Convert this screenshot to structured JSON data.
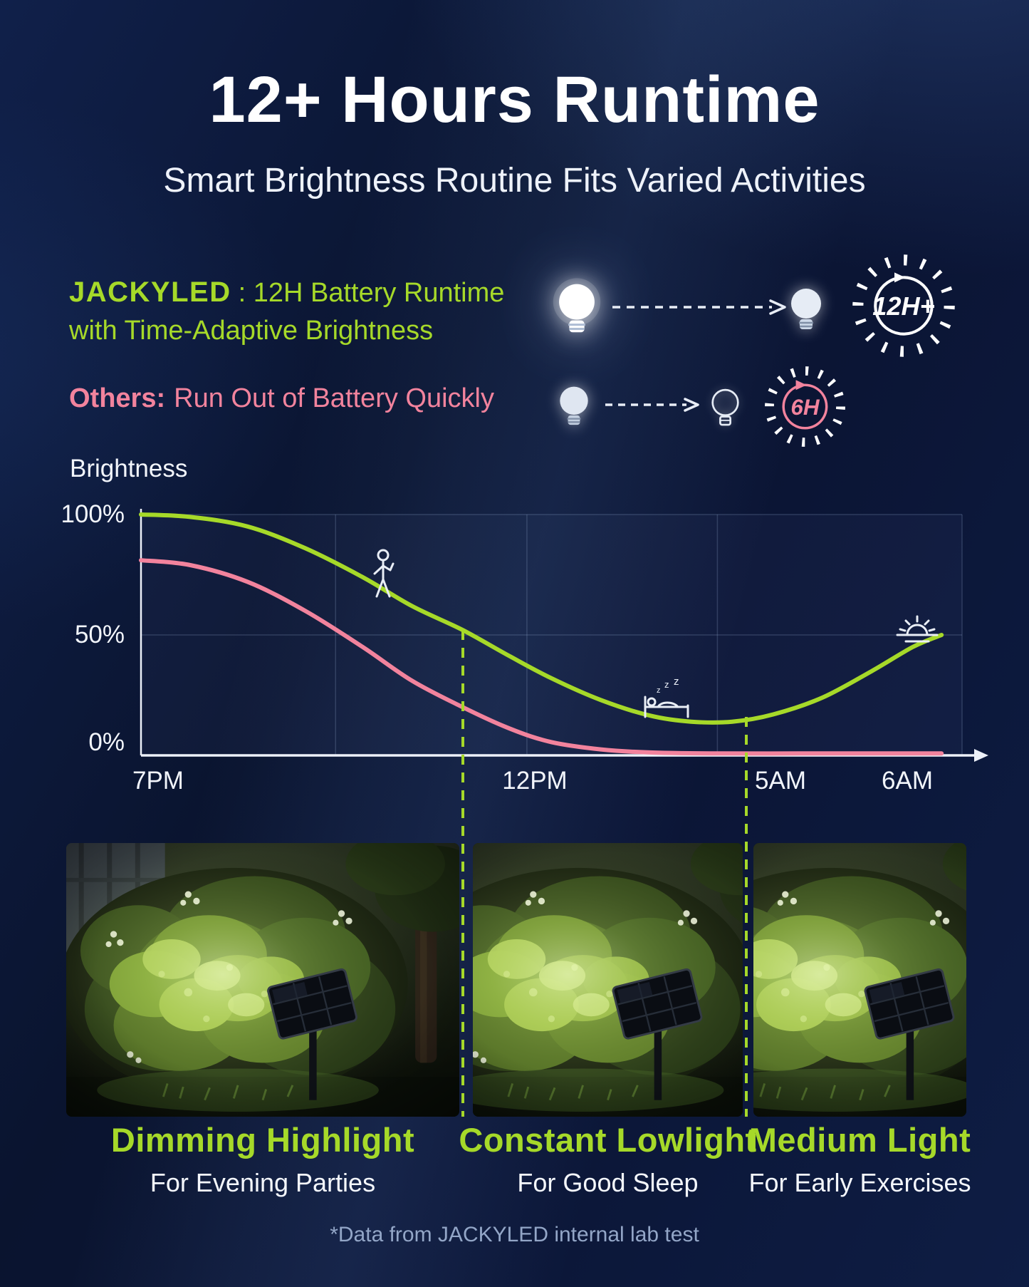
{
  "page": {
    "title": "12+ Hours Runtime",
    "subtitle": "Smart Brightness Routine Fits Varied Activities",
    "footnote": "*Data from JACKYLED internal lab test"
  },
  "colors": {
    "accent_green": "#a6d929",
    "accent_pink": "#f2839d",
    "background_navy": "#0b1533",
    "text_white": "#ffffff"
  },
  "comparison": {
    "jackyled": {
      "brand": "JACKYLED",
      "rest": ": 12H Battery Runtime",
      "line2": "with Time-Adaptive Brightness",
      "badge": "12H+",
      "icons": [
        "bulb-bright-icon",
        "dashed-arrow-icon",
        "bulb-dim-icon",
        "clock-ring-12h-badge"
      ]
    },
    "others": {
      "brand": "Others:",
      "rest": "Run Out of Battery Quickly",
      "badge": "6H",
      "icons": [
        "bulb-dim-icon",
        "dashed-arrow-icon",
        "bulb-outline-icon",
        "clock-ring-6h-badge"
      ]
    }
  },
  "chart_data": {
    "type": "line",
    "title": "Brightness",
    "ylabel": "Brightness",
    "ylim": [
      0,
      100
    ],
    "x_axis_note": "time from 7PM to 6AM, axis not to scale",
    "x_ticks": [
      {
        "label": "7PM",
        "t": 0.02
      },
      {
        "label": "12PM",
        "t": 0.48
      },
      {
        "label": "5AM",
        "t": 0.779
      },
      {
        "label": "6AM",
        "t": 0.933
      }
    ],
    "y_ticks": [
      {
        "label": "100%",
        "value": 100
      },
      {
        "label": "50%",
        "value": 50
      },
      {
        "label": "0%",
        "value": 0
      }
    ],
    "grid": {
      "vertical_t": [
        0.237,
        0.47,
        0.702,
        1.0
      ],
      "horizontal_values": [
        100,
        50
      ]
    },
    "series": [
      {
        "name": "JACKYLED",
        "color": "#a6d929",
        "points": [
          [
            0,
            100
          ],
          [
            0.06,
            99
          ],
          [
            0.13,
            95
          ],
          [
            0.2,
            86
          ],
          [
            0.27,
            74
          ],
          [
            0.33,
            62
          ],
          [
            0.392,
            52
          ],
          [
            0.45,
            41
          ],
          [
            0.5,
            32
          ],
          [
            0.56,
            23
          ],
          [
            0.62,
            16.5
          ],
          [
            0.67,
            14
          ],
          [
            0.72,
            14
          ],
          [
            0.77,
            17
          ],
          [
            0.83,
            24
          ],
          [
            0.89,
            35
          ],
          [
            0.94,
            45
          ],
          [
            0.975,
            50
          ]
        ]
      },
      {
        "name": "Others",
        "color": "#f2839d",
        "points": [
          [
            0,
            81
          ],
          [
            0.06,
            79
          ],
          [
            0.13,
            72
          ],
          [
            0.2,
            60
          ],
          [
            0.27,
            45
          ],
          [
            0.33,
            31
          ],
          [
            0.392,
            20
          ],
          [
            0.45,
            11
          ],
          [
            0.5,
            5.5
          ],
          [
            0.56,
            2.5
          ],
          [
            0.62,
            1.2
          ],
          [
            0.7,
            0.8
          ],
          [
            0.8,
            0.8
          ],
          [
            0.9,
            0.8
          ],
          [
            0.975,
            0.8
          ]
        ]
      }
    ],
    "annotations": [
      {
        "icon": "walking-person-icon",
        "t": 0.295,
        "value": 86
      },
      {
        "icon": "sleeping-bed-icon",
        "t": 0.64,
        "value": 33
      },
      {
        "icon": "sunrise-icon",
        "t": 0.945,
        "value": 60
      }
    ],
    "markers": [
      {
        "t": 0.392,
        "start_value": 52
      },
      {
        "t": 0.737,
        "start_value": 16
      }
    ]
  },
  "photos": [
    {
      "title": "Dimming Highlight",
      "subtitle": "For Evening Parties",
      "illustration": "garden-solar-light-photo"
    },
    {
      "title": "Constant Lowlight",
      "subtitle": "For Good Sleep",
      "illustration": "garden-solar-light-photo"
    },
    {
      "title": "Medium Light",
      "subtitle": "For Early Exercises",
      "illustration": "garden-solar-light-photo"
    }
  ]
}
